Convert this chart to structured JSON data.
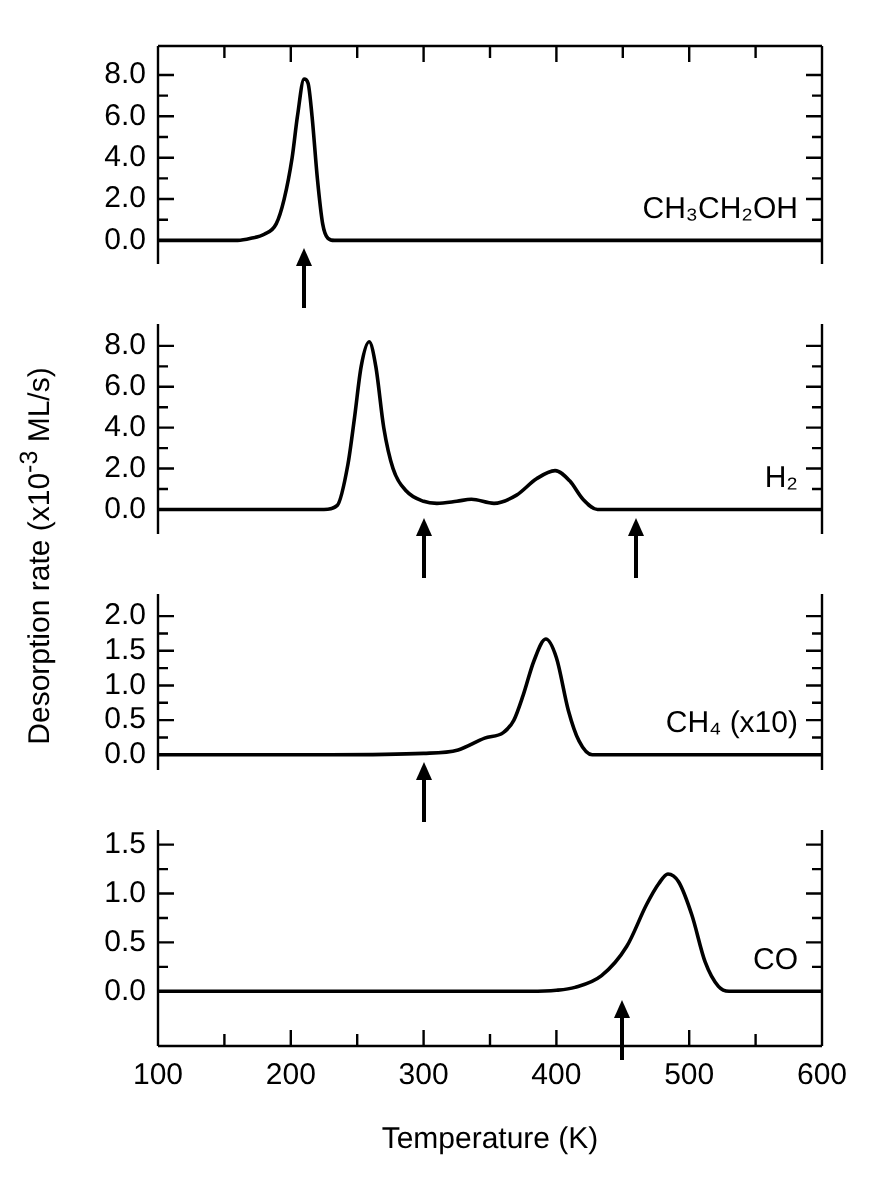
{
  "chart_data": [
    {
      "type": "line",
      "xlim": [
        100,
        600
      ],
      "xticks": [
        100,
        {
          "value": 150,
          "label": null
        },
        200,
        {
          "value": 250,
          "label": null
        },
        300,
        {
          "value": 350,
          "label": null
        },
        400,
        {
          "value": 450,
          "label": null
        },
        500,
        {
          "value": 550,
          "label": null
        },
        600
      ],
      "ylim": [
        -1.14,
        9.4
      ],
      "yticks": [
        {
          "value": 0,
          "label": "0.0"
        },
        {
          "value": 1,
          "label": null
        },
        {
          "value": 2,
          "label": "2.0"
        },
        {
          "value": 3,
          "label": null
        },
        {
          "value": 4,
          "label": "4.0"
        },
        {
          "value": 5,
          "label": null
        },
        {
          "value": 6,
          "label": "6.0"
        },
        {
          "value": 7,
          "label": null
        },
        {
          "value": 8,
          "label": "8.0"
        }
      ],
      "tick_labels": "y",
      "series": [
        {
          "name": "CH₃CH₂OH",
          "color": "#000000",
          "x": [
            100,
            160,
            170,
            180,
            189,
            195,
            201,
            205,
            210,
            213,
            216,
            220,
            224,
            228,
            233,
            600
          ],
          "values": [
            0,
            0,
            0.1,
            0.3,
            0.8,
            2.0,
            4.0,
            6.0,
            7.8,
            7.6,
            6.0,
            3.0,
            0.8,
            0.1,
            0,
            0
          ]
        }
      ]
    },
    {
      "type": "line",
      "xlim": [
        100,
        600
      ],
      "ylim": [
        -1.2,
        9.07
      ],
      "yticks": [
        {
          "value": 0,
          "label": "0.0"
        },
        {
          "value": 1,
          "label": null
        },
        {
          "value": 2,
          "label": "2.0"
        },
        {
          "value": 3,
          "label": null
        },
        {
          "value": 4,
          "label": "4.0"
        },
        {
          "value": 5,
          "label": null
        },
        {
          "value": 6,
          "label": "6.0"
        },
        {
          "value": 7,
          "label": null
        },
        {
          "value": 8,
          "label": "8.0"
        }
      ],
      "tick_labels": "y",
      "ylabel": "Desorption rate (x10$^{-3}$ ML/s)",
      "series": [
        {
          "name": "H₂",
          "color": "#000000",
          "x": [
            100,
            225,
            235,
            243,
            248,
            253,
            259,
            264,
            270,
            277,
            287,
            300,
            310,
            325,
            336,
            353,
            370,
            385,
            399,
            410,
            420,
            431,
            600
          ],
          "values": [
            0,
            0,
            0.2,
            2.2,
            4.5,
            7.0,
            8.2,
            7.0,
            4.0,
            2.0,
            0.9,
            0.4,
            0.3,
            0.4,
            0.5,
            0.3,
            0.7,
            1.5,
            1.9,
            1.4,
            0.5,
            0,
            0
          ]
        }
      ]
    },
    {
      "type": "line",
      "xlim": [
        100,
        600
      ],
      "ylim": [
        -0.22,
        2.32
      ],
      "yticks": [
        {
          "value": 0,
          "label": "0.0"
        },
        {
          "value": 0.25,
          "label": null
        },
        {
          "value": 0.5,
          "label": "0.5"
        },
        {
          "value": 0.75,
          "label": null
        },
        {
          "value": 1,
          "label": "1.0"
        },
        {
          "value": 1.25,
          "label": null
        },
        {
          "value": 1.5,
          "label": "1.5"
        },
        {
          "value": 1.75,
          "label": null
        },
        {
          "value": 2,
          "label": "2.0"
        }
      ],
      "tick_labels": "y",
      "series": [
        {
          "name": "CH₄ (x10)",
          "color": "#000000",
          "x": [
            100,
            230,
            300,
            326,
            346,
            360,
            368,
            375,
            383,
            392,
            400,
            409,
            417,
            427,
            600
          ],
          "values": [
            0,
            0,
            0.02,
            0.07,
            0.24,
            0.32,
            0.5,
            0.86,
            1.35,
            1.67,
            1.4,
            0.64,
            0.2,
            0,
            0
          ]
        }
      ]
    },
    {
      "type": "line",
      "xlim": [
        100,
        600
      ],
      "xticks": [
        100,
        {
          "value": 150,
          "label": null
        },
        200,
        {
          "value": 250,
          "label": null
        },
        300,
        {
          "value": 350,
          "label": null
        },
        400,
        {
          "value": 450,
          "label": null
        },
        500,
        {
          "value": 550,
          "label": null
        },
        600
      ],
      "ylim": [
        -0.56,
        1.65
      ],
      "yticks": [
        {
          "value": 0,
          "label": "0.0"
        },
        {
          "value": 0.25,
          "label": null
        },
        {
          "value": 0.5,
          "label": "0.5"
        },
        {
          "value": 0.75,
          "label": null
        },
        {
          "value": 1,
          "label": "1.0"
        },
        {
          "value": 1.25,
          "label": null
        },
        {
          "value": 1.5,
          "label": "1.5"
        }
      ],
      "xlabel": "Temperature (K)",
      "series": [
        {
          "name": "CO",
          "color": "#000000",
          "x": [
            100,
            380,
            400,
            414,
            434,
            453,
            468,
            477,
            484,
            492,
            502,
            512,
            522,
            530,
            600
          ],
          "values": [
            0,
            0,
            0.01,
            0.04,
            0.16,
            0.46,
            0.89,
            1.1,
            1.2,
            1.12,
            0.78,
            0.3,
            0.05,
            0,
            0
          ]
        }
      ]
    }
  ]
}
